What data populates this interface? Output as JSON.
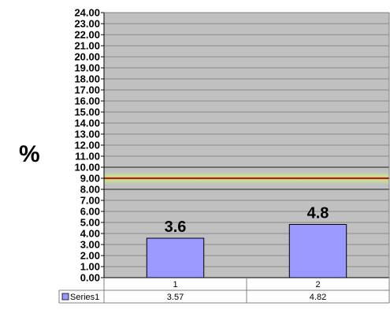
{
  "chart_data": {
    "type": "bar",
    "ylabel": "%",
    "ylim": [
      0,
      24
    ],
    "ytick_step": 1,
    "ytick_labels": [
      "0.00",
      "1.00",
      "2.00",
      "3.00",
      "4.00",
      "5.00",
      "6.00",
      "7.00",
      "8.00",
      "9.00",
      "10.00",
      "11.00",
      "12.00",
      "13.00",
      "14.00",
      "15.00",
      "16.00",
      "17.00",
      "18.00",
      "19.00",
      "20.00",
      "21.00",
      "22.00",
      "23.00",
      "24.00"
    ],
    "categories": [
      "1",
      "2"
    ],
    "series": [
      {
        "name": "Series1",
        "values": [
          3.57,
          4.82
        ],
        "table_values": [
          "3.57",
          "4.82"
        ],
        "color": "#9999ff"
      }
    ],
    "data_labels": [
      "3.6",
      "4.8"
    ],
    "reference_band": {
      "from": 8,
      "to": 10,
      "line": 9,
      "line_color": "#b02020",
      "glow_color": "#c8e68c"
    },
    "grid": true,
    "plot_background": "#c0c0c0",
    "data_table": true
  }
}
